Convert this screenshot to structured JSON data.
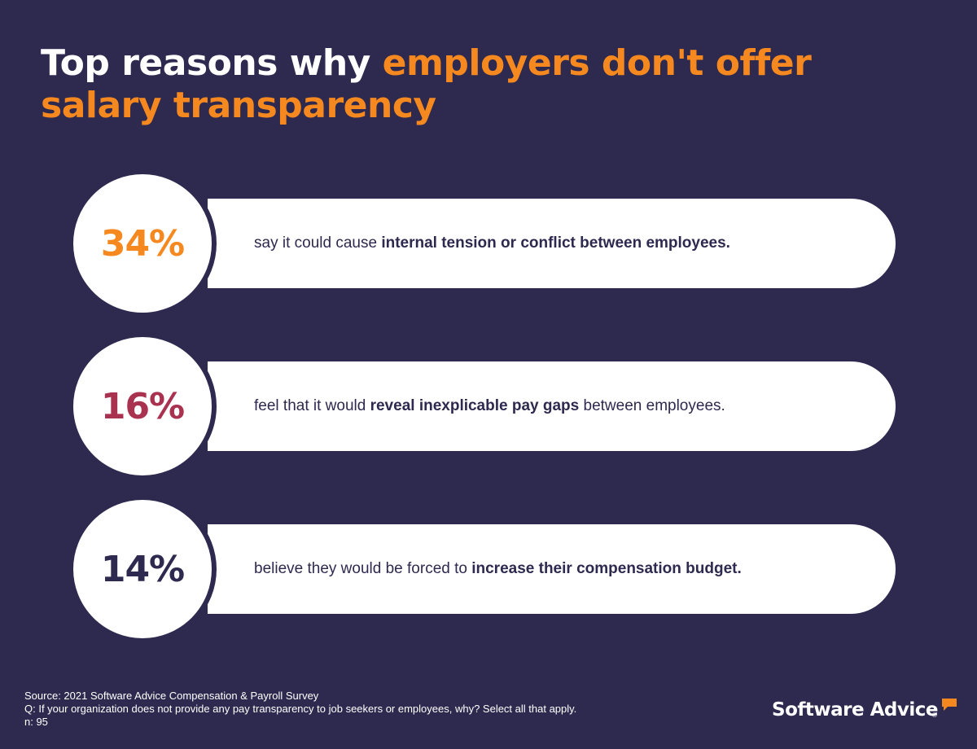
{
  "header": {
    "title_part1": "Top reasons why ",
    "title_part2": "employers don't offer salary transparency"
  },
  "stats": [
    {
      "percent": "34%",
      "color": "#f5891f",
      "text_before": "say it could cause ",
      "text_bold": "internal tension or conflict between employees.",
      "text_after": ""
    },
    {
      "percent": "16%",
      "color": "#a8324f",
      "text_before": "feel that it would ",
      "text_bold": "reveal inexplicable pay gaps",
      "text_after": " between employees."
    },
    {
      "percent": "14%",
      "color": "#2e294e",
      "text_before": "believe they would be forced to ",
      "text_bold": "increase their compensation budget.",
      "text_after": ""
    }
  ],
  "footnote": {
    "source": "Source: 2021 Software Advice Compensation & Payroll Survey",
    "question": "Q: If your organization does not provide any pay transparency to job seekers or employees, why? Select all that apply.",
    "sample": "n: 95"
  },
  "logo": {
    "text": "Software Advice",
    "registered": "®",
    "icon": "speech-bubble-icon"
  },
  "colors": {
    "background": "#2e294e",
    "accent": "#f5891f",
    "white": "#ffffff"
  }
}
